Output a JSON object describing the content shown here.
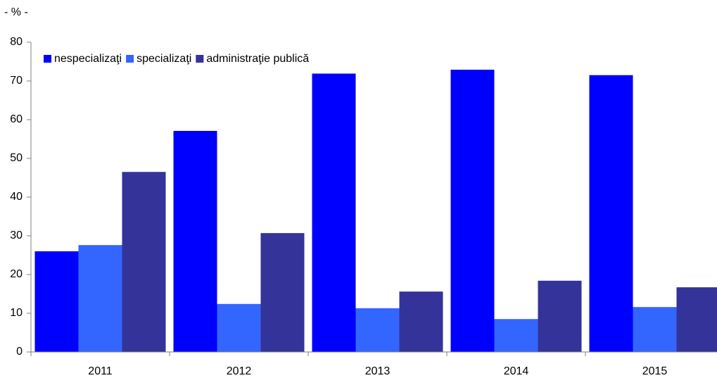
{
  "chart_data": {
    "type": "bar",
    "unit_label": "- % -",
    "categories": [
      "2011",
      "2012",
      "2013",
      "2014",
      "2015"
    ],
    "series": [
      {
        "name": "nespecializaţi",
        "color": "#0000ff",
        "values": [
          26,
          57.1,
          71.9,
          72.9,
          71.5
        ]
      },
      {
        "name": "specializaţi",
        "color": "#3366ff",
        "values": [
          27.6,
          12.4,
          11.3,
          8.5,
          11.6
        ]
      },
      {
        "name": "administraţie publică",
        "color": "#333399",
        "values": [
          46.5,
          30.7,
          15.6,
          18.4,
          16.7
        ]
      }
    ],
    "ylim": [
      0,
      80
    ],
    "yticks": [
      0,
      10,
      20,
      30,
      40,
      50,
      60,
      70,
      80
    ],
    "grid": false,
    "legend": "top-left"
  }
}
